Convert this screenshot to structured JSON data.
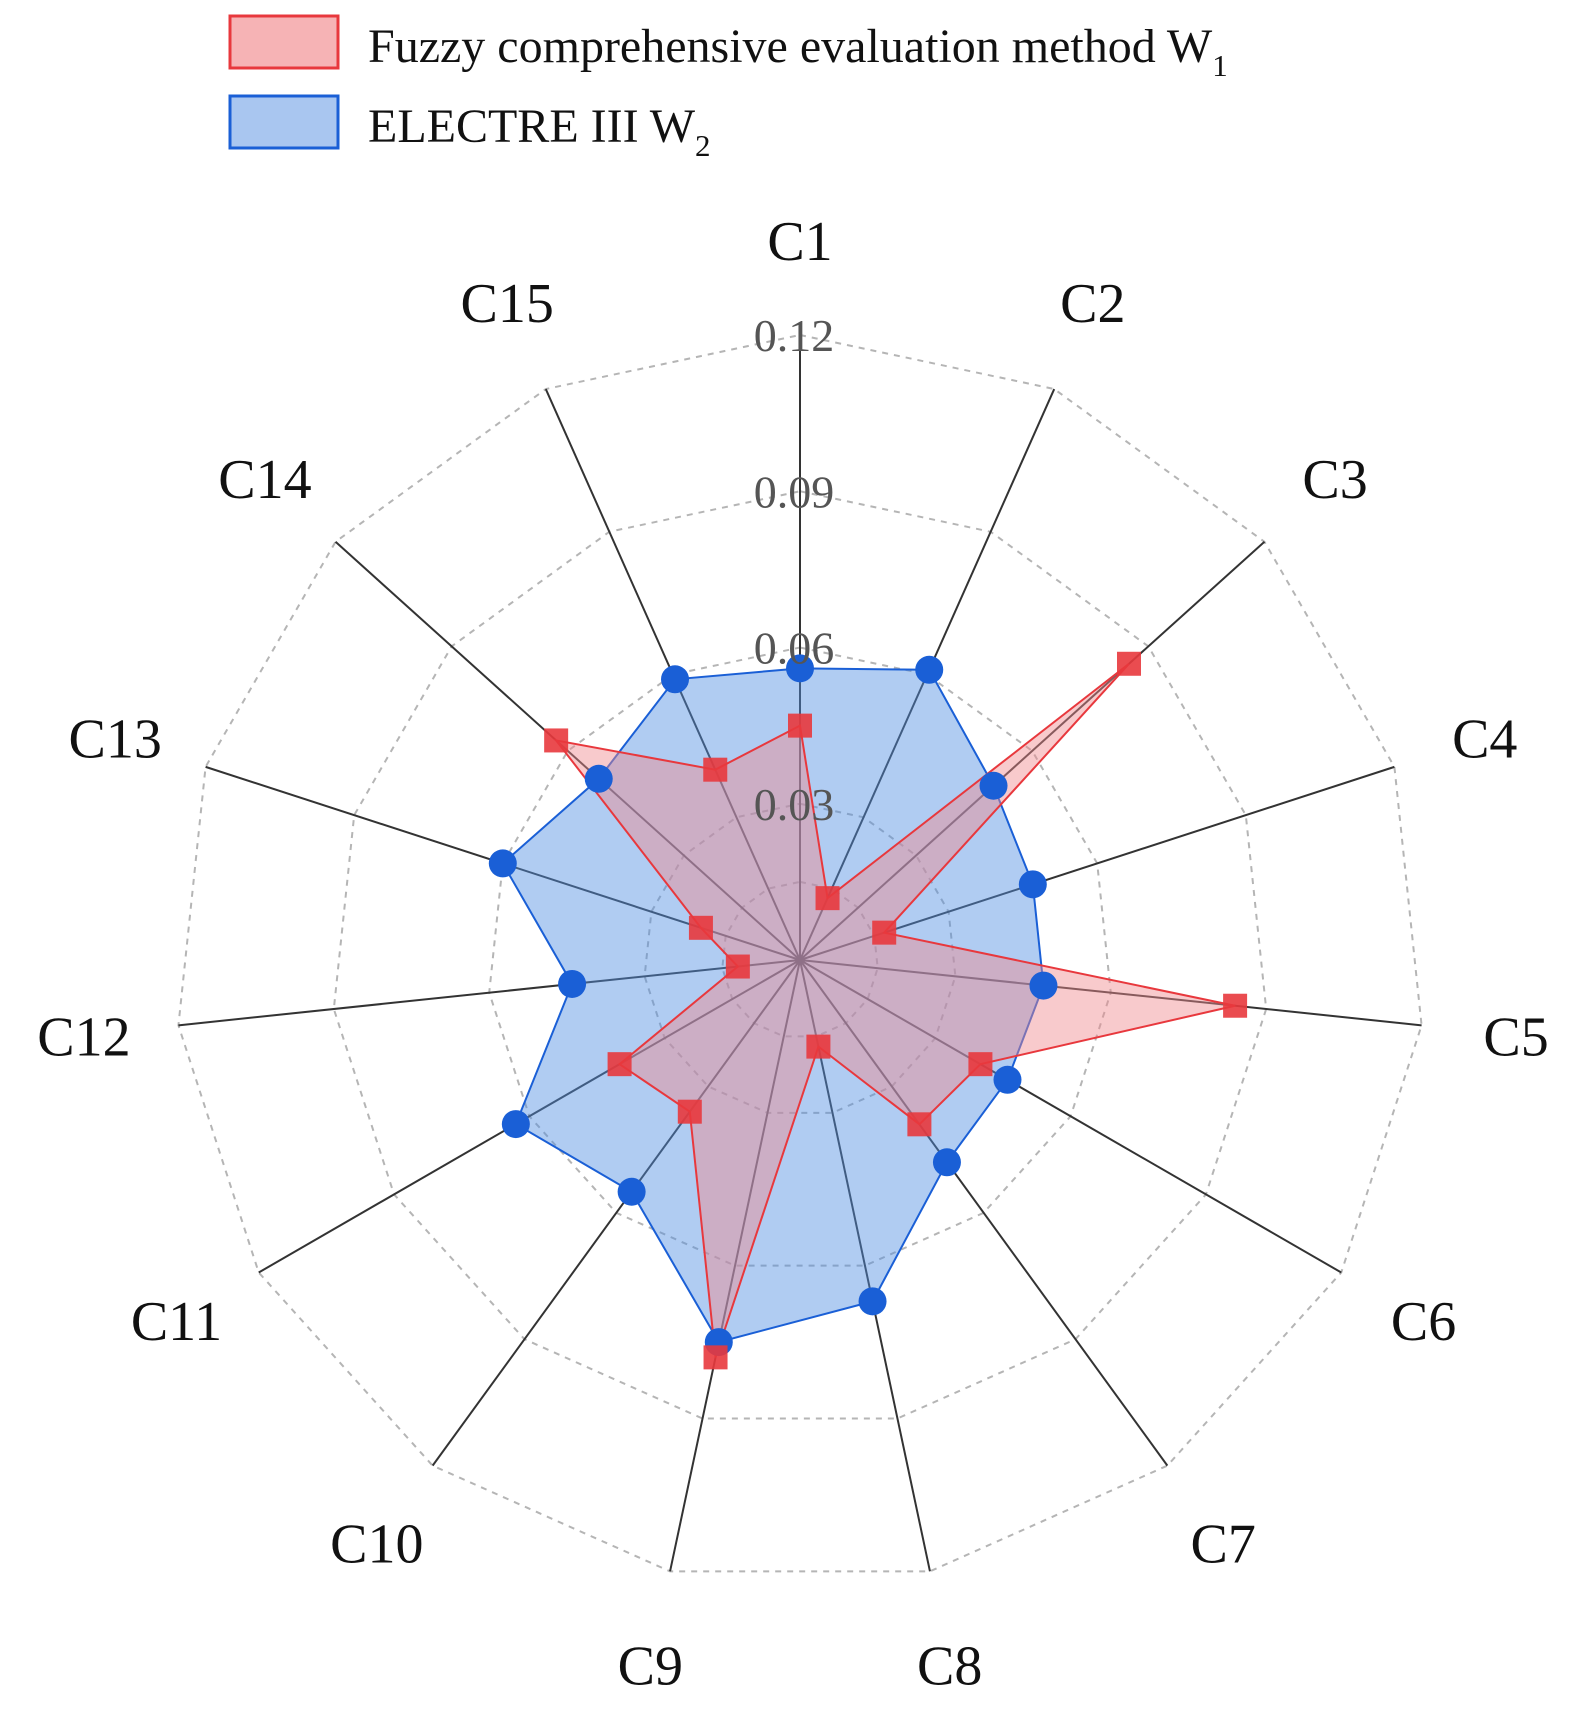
{
  "chart_data": {
    "type": "radar",
    "categories": [
      "C1",
      "C2",
      "C3",
      "C4",
      "C5",
      "C6",
      "C7",
      "C8",
      "C9",
      "C10",
      "C11",
      "C12",
      "C13",
      "C14",
      "C15"
    ],
    "r_ticks": [
      "0.03",
      "0.06",
      "0.09",
      "0.12"
    ],
    "r_tick_values": [
      0.03,
      0.06,
      0.09,
      0.12
    ],
    "rlim": [
      0,
      0.12
    ],
    "grid": true,
    "grid_style": "dashed-polygon",
    "legend_position": "top-left",
    "series": [
      {
        "name": "Fuzzy comprehensive evaluation method W",
        "subscript": "1",
        "marker": "square",
        "color": "#e8383d",
        "fill": "#f08a8d",
        "values": [
          0.045,
          0.013,
          0.085,
          0.017,
          0.084,
          0.04,
          0.039,
          0.017,
          0.078,
          0.036,
          0.04,
          0.012,
          0.02,
          0.063,
          0.04
        ]
      },
      {
        "name": "ELECTRE III W",
        "subscript": "2",
        "marker": "circle",
        "color": "#1a5fd6",
        "fill": "#4f8fe3",
        "values": [
          0.056,
          0.061,
          0.05,
          0.047,
          0.047,
          0.046,
          0.048,
          0.067,
          0.075,
          0.055,
          0.063,
          0.044,
          0.06,
          0.052,
          0.059
        ]
      }
    ]
  }
}
